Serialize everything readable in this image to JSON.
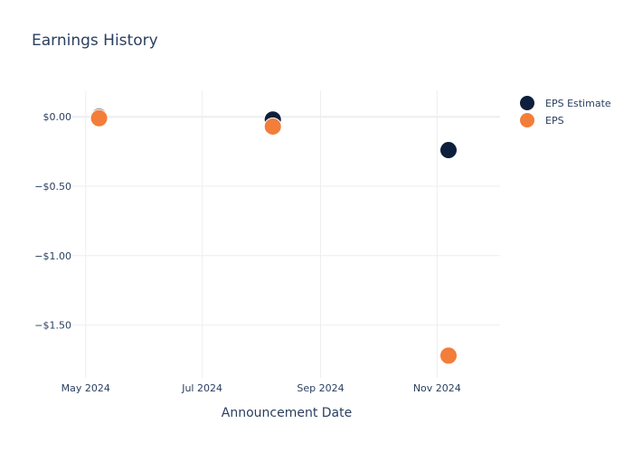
{
  "chart_data": {
    "type": "scatter",
    "title": "Earnings History",
    "xlabel": "Announcement Date",
    "ylabel": "",
    "x_ticks": [
      "May 2024",
      "Jul 2024",
      "Sep 2024",
      "Nov 2024"
    ],
    "y_ticks": [
      "$0.00",
      "−$0.50",
      "−$1.00",
      "−$1.50"
    ],
    "y_tick_values": [
      0,
      -0.5,
      -1.0,
      -1.5
    ],
    "ylim": [
      -1.88,
      0.19
    ],
    "xlim": [
      "2024-04-24",
      "2024-12-04"
    ],
    "x_tick_dates": [
      "2024-05-01",
      "2024-07-01",
      "2024-09-01",
      "2024-11-01"
    ],
    "grid": true,
    "legend_position": "top-right",
    "series": [
      {
        "name": "EPS Estimate",
        "color": "#0d1f3c",
        "x": [
          "2024-05-08",
          "2024-08-07",
          "2024-11-07"
        ],
        "values": [
          0.0,
          -0.02,
          -0.24
        ]
      },
      {
        "name": "EPS",
        "color": "#f27e3a",
        "x": [
          "2024-05-08",
          "2024-08-07",
          "2024-11-07"
        ],
        "values": [
          -0.01,
          -0.07,
          -1.72
        ]
      }
    ]
  }
}
